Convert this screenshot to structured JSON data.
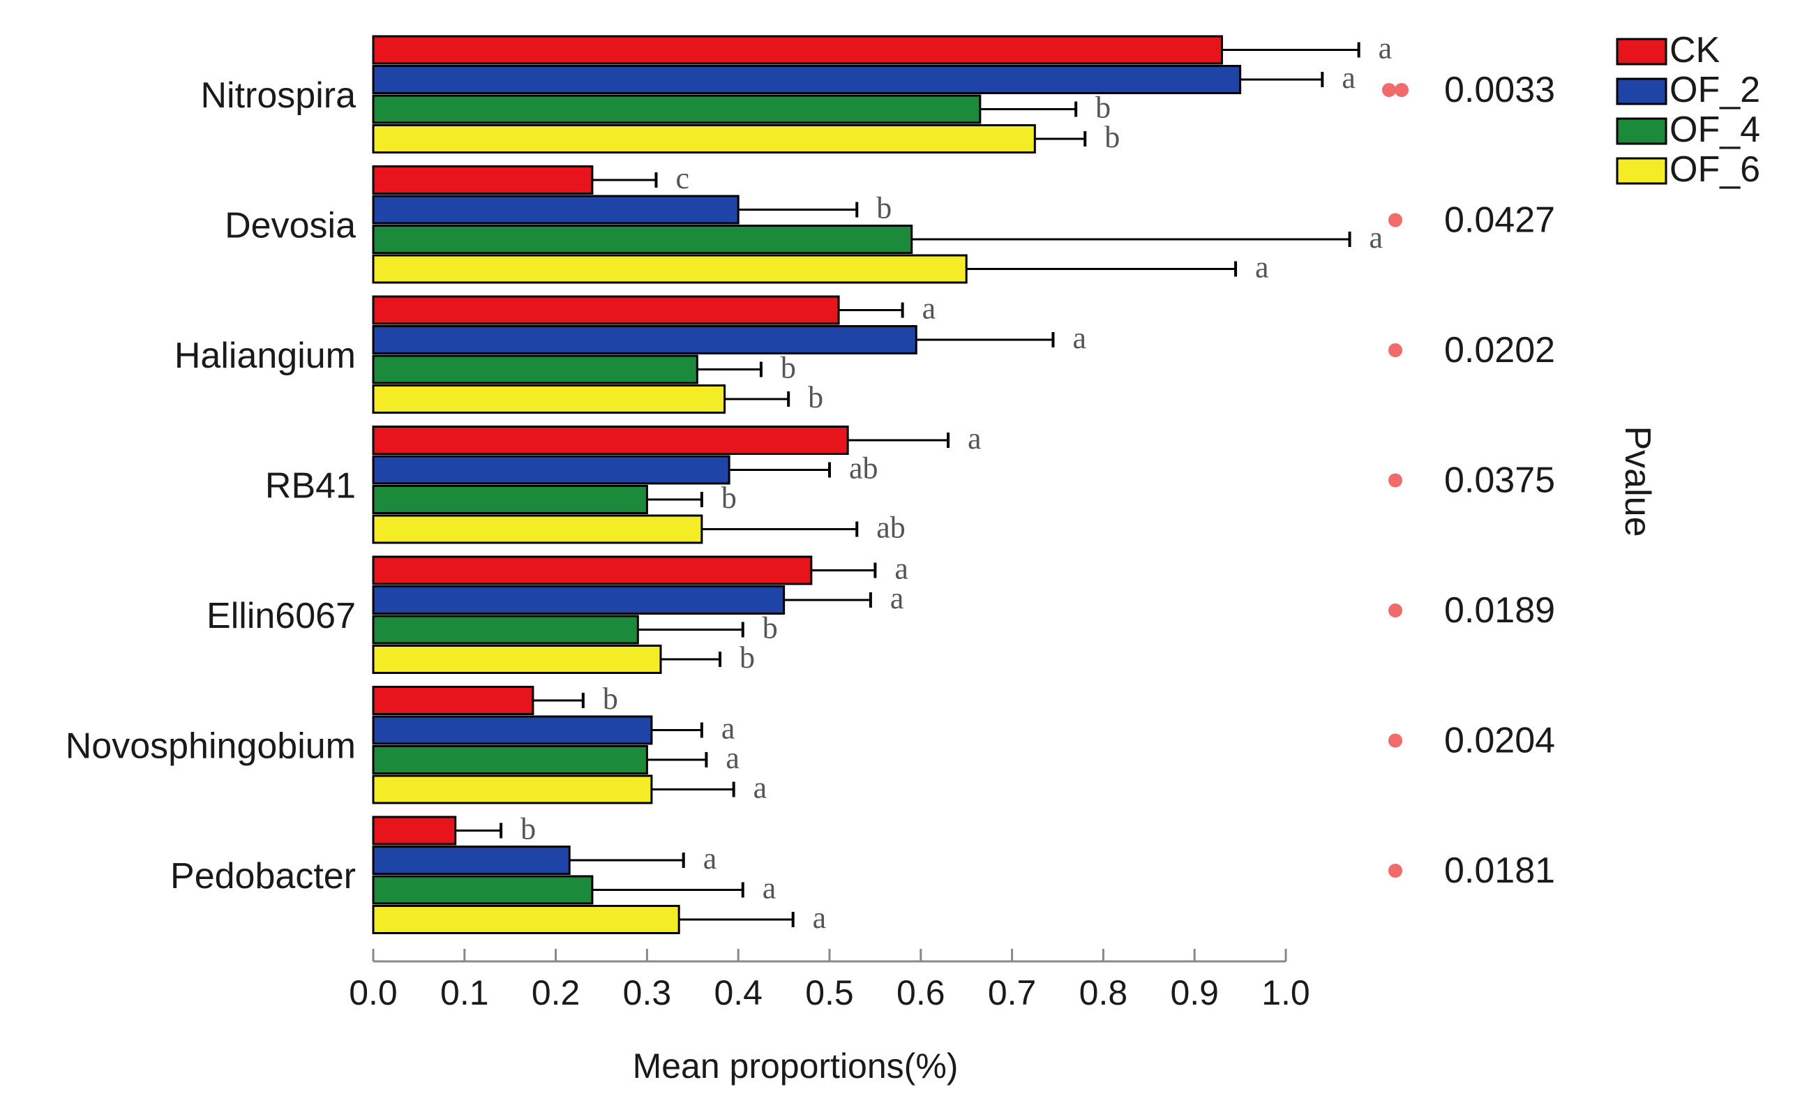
{
  "chart_data": {
    "type": "bar",
    "orientation": "horizontal",
    "categories": [
      "Nitrospira",
      "Devosia",
      "Haliangium",
      "RB41",
      "Ellin6067",
      "Novosphingobium",
      "Pedobacter"
    ],
    "series": [
      {
        "name": "CK",
        "color": "#e8141c",
        "values": [
          0.93,
          0.24,
          0.51,
          0.52,
          0.48,
          0.175,
          0.09
        ],
        "errors": [
          0.15,
          0.07,
          0.07,
          0.11,
          0.07,
          0.055,
          0.05
        ],
        "letters": [
          "a",
          "c",
          "a",
          "a",
          "a",
          "b",
          "b"
        ]
      },
      {
        "name": "OF_2",
        "color": "#1f44a8",
        "values": [
          0.95,
          0.4,
          0.595,
          0.39,
          0.45,
          0.305,
          0.215
        ],
        "errors": [
          0.09,
          0.13,
          0.15,
          0.11,
          0.095,
          0.055,
          0.125
        ],
        "letters": [
          "a",
          "b",
          "a",
          "ab",
          "a",
          "a",
          "a"
        ]
      },
      {
        "name": "OF_4",
        "color": "#1b8a3a",
        "values": [
          0.665,
          0.59,
          0.355,
          0.3,
          0.29,
          0.3,
          0.24
        ],
        "errors": [
          0.105,
          0.48,
          0.07,
          0.06,
          0.115,
          0.065,
          0.165
        ],
        "letters": [
          "b",
          "a",
          "b",
          "b",
          "b",
          "a",
          "a"
        ]
      },
      {
        "name": "OF_6",
        "color": "#f4ec24",
        "values": [
          0.725,
          0.65,
          0.385,
          0.36,
          0.315,
          0.305,
          0.335
        ],
        "errors": [
          0.055,
          0.295,
          0.07,
          0.17,
          0.065,
          0.09,
          0.125
        ],
        "letters": [
          "b",
          "a",
          "b",
          "ab",
          "b",
          "a",
          "a"
        ]
      }
    ],
    "pvalues": [
      "0.0033",
      "0.0427",
      "0.0202",
      "0.0375",
      "0.0189",
      "0.0204",
      "0.0181"
    ],
    "significance": [
      "**",
      "*",
      "*",
      "*",
      "*",
      "*",
      "*"
    ],
    "significance_color": "#f26b6b",
    "xlabel": "Mean proportions(%)",
    "xlim": [
      0.0,
      1.0
    ],
    "xticks": [
      "0.0",
      "0.1",
      "0.2",
      "0.3",
      "0.4",
      "0.5",
      "0.6",
      "0.7",
      "0.8",
      "0.9",
      "1.0"
    ],
    "pvalue_axis_label": "Pvalue",
    "legend": {
      "position": "top-right",
      "entries": [
        "CK",
        "OF_2",
        "OF_4",
        "OF_6"
      ]
    },
    "grid": false
  }
}
